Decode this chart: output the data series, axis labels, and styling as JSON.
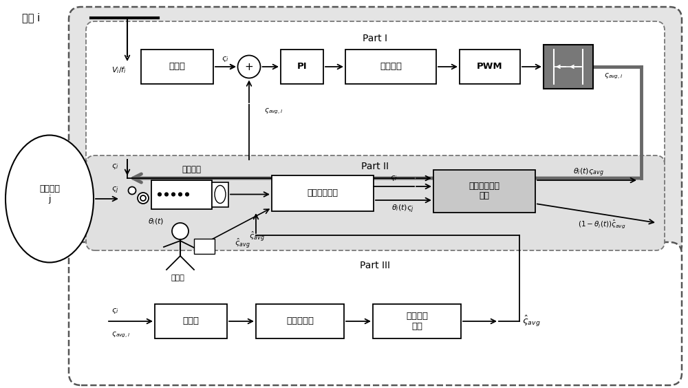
{
  "fig_w": 10.0,
  "fig_h": 5.64,
  "dpi": 100,
  "part1_label": "Part I",
  "part2_label": "Part II",
  "part3_label": "Part III",
  "node_label": "节点 i",
  "neighbor_label": "邻居节点\nj",
  "block_guiyi": "归一化",
  "block_pi": "PI",
  "block_dianliu": "电流内环",
  "block_pwm": "PWM",
  "block_tongxin": "通信网络",
  "block_shijian": "事件触发机制",
  "block_guiyi_avg": "归一化平均値\n计算",
  "block_huancunqi": "缓存器",
  "block_wumoxing": "无模型预测",
  "block_shuchukongzhi": "输出控制\n增量",
  "attacker_label": "攻击者",
  "gray_box_color": "#c8c8c8",
  "light_gray": "#e0e0e0",
  "dark_gray": "#686868",
  "converter_gray": "#787878"
}
